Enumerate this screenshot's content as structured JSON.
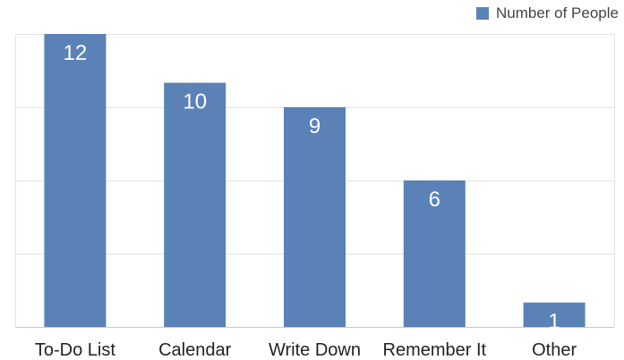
{
  "legend": {
    "label": "Number of People",
    "color": "#5a82b7"
  },
  "chart_data": {
    "type": "bar",
    "title": "",
    "xlabel": "",
    "ylabel": "",
    "categories": [
      "To-Do List",
      "Calendar",
      "Write Down",
      "Remember It",
      "Other"
    ],
    "series": [
      {
        "name": "Number of People",
        "values": [
          12,
          10,
          9,
          6,
          1
        ],
        "color": "#5a82b7"
      }
    ],
    "ylim": [
      0,
      12
    ],
    "y_gridlines": [
      0,
      3,
      6,
      9,
      12
    ],
    "grid": true,
    "data_labels": true,
    "legend_position": "top-right"
  }
}
